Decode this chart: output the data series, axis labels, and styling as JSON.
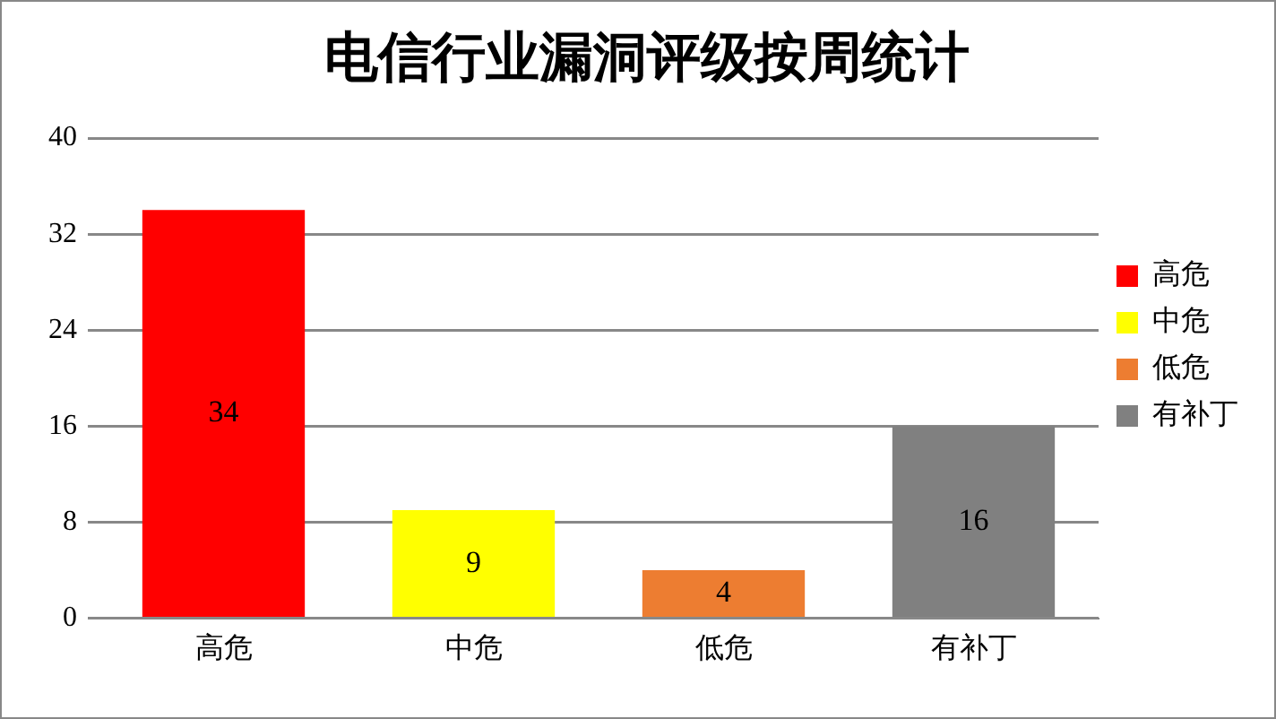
{
  "chart_data": {
    "type": "bar",
    "title": "电信行业漏洞评级按周统计",
    "categories": [
      "高危",
      "中危",
      "低危",
      "有补丁"
    ],
    "series": [
      {
        "name": "高危",
        "color": "#ff0000",
        "values": [
          34,
          null,
          null,
          null
        ]
      },
      {
        "name": "中危",
        "color": "#ffff00",
        "values": [
          null,
          9,
          null,
          null
        ]
      },
      {
        "name": "低危",
        "color": "#ed7d31",
        "values": [
          null,
          null,
          4,
          null
        ]
      },
      {
        "name": "有补丁",
        "color": "#808080",
        "values": [
          null,
          null,
          null,
          16
        ]
      }
    ],
    "ylim": [
      0,
      40
    ],
    "yticks": [
      0,
      8,
      16,
      24,
      32,
      40
    ],
    "grid": "y",
    "legend": "right",
    "data_labels": true
  }
}
